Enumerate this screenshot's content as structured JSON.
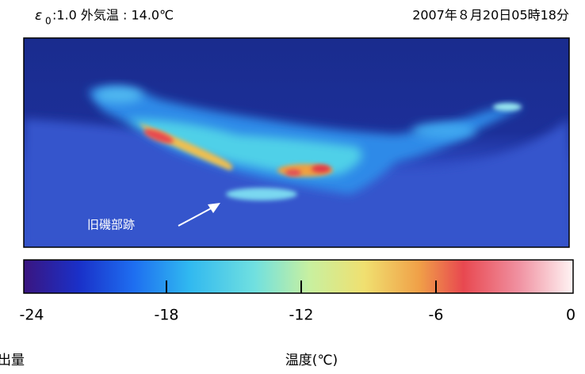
{
  "header": {
    "symbol": "ε",
    "symbol_subscript": "0",
    "conditions": ":1.0 外気温 : 14.0℃",
    "timestamp": "2007年８月20日05時18分"
  },
  "image": {
    "annotation": "旧磯部跡"
  },
  "colorbar": {
    "lim": [
      -24,
      0
    ],
    "ticks": [
      -24,
      -18,
      -12,
      -6,
      0
    ],
    "label": "温度(℃)"
  },
  "footer": {
    "cut_text": "出量"
  }
}
